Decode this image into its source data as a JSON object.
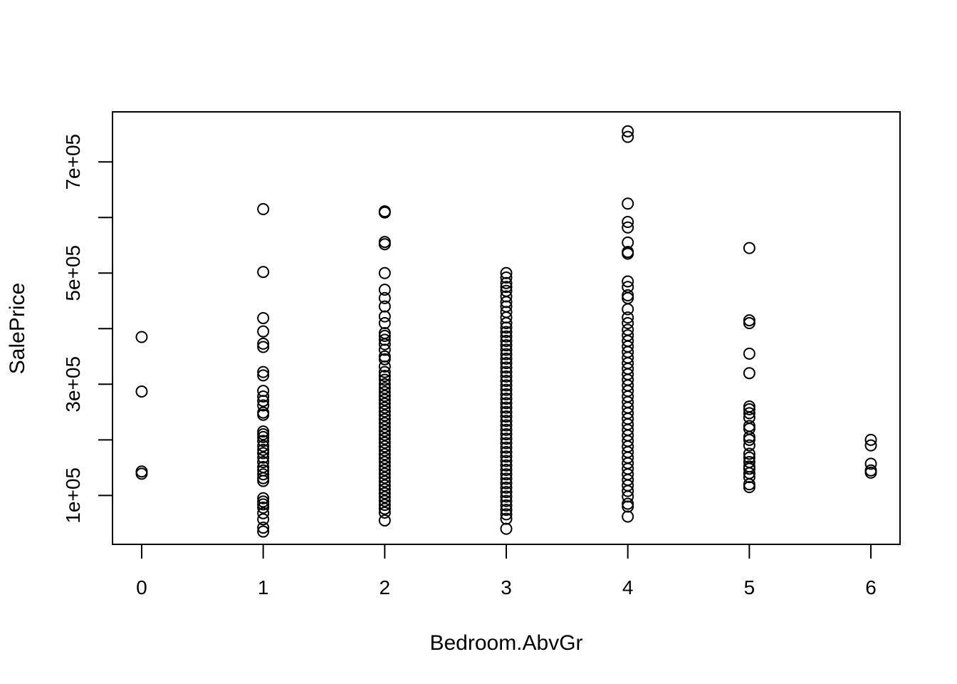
{
  "chart_data": {
    "type": "scatter",
    "title": "",
    "xlabel": "Bedroom.AbvGr",
    "ylabel": "SalePrice",
    "xlim": [
      -0.24,
      6.24
    ],
    "ylim": [
      12000,
      790000
    ],
    "x_ticks": [
      0,
      1,
      2,
      3,
      4,
      5,
      6
    ],
    "x_tick_labels": [
      "0",
      "1",
      "2",
      "3",
      "4",
      "5",
      "6"
    ],
    "y_ticks": [
      100000,
      200000,
      300000,
      400000,
      500000,
      600000,
      700000
    ],
    "y_tick_labels": [
      "1e+05",
      "",
      "3e+05",
      "",
      "5e+05",
      "",
      "7e+05"
    ],
    "grid": false,
    "legend": "none",
    "marker": "open-circle",
    "series": [
      {
        "points": [
          [
            0,
            385000
          ],
          [
            0,
            287000
          ],
          [
            0,
            143000
          ],
          [
            0,
            139000
          ],
          [
            1,
            615000
          ],
          [
            1,
            502000
          ],
          [
            1,
            419000
          ],
          [
            1,
            395000
          ],
          [
            1,
            373000
          ],
          [
            1,
            367000
          ],
          [
            1,
            322000
          ],
          [
            1,
            316000
          ],
          [
            1,
            288000
          ],
          [
            1,
            278000
          ],
          [
            1,
            270000
          ],
          [
            1,
            262000
          ],
          [
            1,
            249000
          ],
          [
            1,
            245000
          ],
          [
            1,
            215000
          ],
          [
            1,
            210000
          ],
          [
            1,
            205000
          ],
          [
            1,
            198000
          ],
          [
            1,
            189000
          ],
          [
            1,
            182000
          ],
          [
            1,
            176000
          ],
          [
            1,
            168000
          ],
          [
            1,
            160000
          ],
          [
            1,
            151000
          ],
          [
            1,
            145000
          ],
          [
            1,
            138000
          ],
          [
            1,
            131000
          ],
          [
            1,
            126000
          ],
          [
            1,
            95000
          ],
          [
            1,
            89000
          ],
          [
            1,
            84000
          ],
          [
            1,
            78000
          ],
          [
            1,
            68000
          ],
          [
            1,
            57000
          ],
          [
            1,
            42000
          ],
          [
            1,
            35000
          ],
          [
            2,
            611000
          ],
          [
            2,
            609000
          ],
          [
            2,
            556000
          ],
          [
            2,
            552000
          ],
          [
            2,
            500000
          ],
          [
            2,
            470000
          ],
          [
            2,
            455000
          ],
          [
            2,
            440000
          ],
          [
            2,
            422000
          ],
          [
            2,
            410000
          ],
          [
            2,
            392000
          ],
          [
            2,
            387000
          ],
          [
            2,
            380000
          ],
          [
            2,
            372000
          ],
          [
            2,
            362000
          ],
          [
            2,
            350000
          ],
          [
            2,
            345000
          ],
          [
            2,
            332000
          ],
          [
            2,
            322000
          ],
          [
            2,
            315000
          ],
          [
            2,
            308000
          ],
          [
            2,
            300000
          ],
          [
            2,
            293000
          ],
          [
            2,
            286000
          ],
          [
            2,
            279000
          ],
          [
            2,
            272000
          ],
          [
            2,
            265000
          ],
          [
            2,
            258000
          ],
          [
            2,
            251000
          ],
          [
            2,
            244000
          ],
          [
            2,
            237000
          ],
          [
            2,
            230000
          ],
          [
            2,
            223000
          ],
          [
            2,
            216000
          ],
          [
            2,
            209000
          ],
          [
            2,
            202000
          ],
          [
            2,
            195000
          ],
          [
            2,
            188000
          ],
          [
            2,
            181000
          ],
          [
            2,
            174000
          ],
          [
            2,
            167000
          ],
          [
            2,
            160000
          ],
          [
            2,
            153000
          ],
          [
            2,
            146000
          ],
          [
            2,
            139000
          ],
          [
            2,
            132000
          ],
          [
            2,
            125000
          ],
          [
            2,
            118000
          ],
          [
            2,
            111000
          ],
          [
            2,
            104000
          ],
          [
            2,
            97000
          ],
          [
            2,
            90000
          ],
          [
            2,
            83000
          ],
          [
            2,
            76000
          ],
          [
            2,
            69000
          ],
          [
            2,
            55000
          ],
          [
            3,
            500000
          ],
          [
            3,
            492000
          ],
          [
            3,
            482000
          ],
          [
            3,
            475000
          ],
          [
            3,
            468000
          ],
          [
            3,
            458000
          ],
          [
            3,
            448000
          ],
          [
            3,
            440000
          ],
          [
            3,
            430000
          ],
          [
            3,
            420000
          ],
          [
            3,
            410000
          ],
          [
            3,
            402000
          ],
          [
            3,
            394000
          ],
          [
            3,
            386000
          ],
          [
            3,
            378000
          ],
          [
            3,
            370000
          ],
          [
            3,
            362000
          ],
          [
            3,
            354000
          ],
          [
            3,
            346000
          ],
          [
            3,
            338000
          ],
          [
            3,
            330000
          ],
          [
            3,
            322000
          ],
          [
            3,
            314000
          ],
          [
            3,
            306000
          ],
          [
            3,
            298000
          ],
          [
            3,
            290000
          ],
          [
            3,
            282000
          ],
          [
            3,
            274000
          ],
          [
            3,
            266000
          ],
          [
            3,
            258000
          ],
          [
            3,
            250000
          ],
          [
            3,
            242000
          ],
          [
            3,
            234000
          ],
          [
            3,
            226000
          ],
          [
            3,
            218000
          ],
          [
            3,
            210000
          ],
          [
            3,
            202000
          ],
          [
            3,
            194000
          ],
          [
            3,
            186000
          ],
          [
            3,
            178000
          ],
          [
            3,
            170000
          ],
          [
            3,
            162000
          ],
          [
            3,
            154000
          ],
          [
            3,
            146000
          ],
          [
            3,
            138000
          ],
          [
            3,
            130000
          ],
          [
            3,
            122000
          ],
          [
            3,
            114000
          ],
          [
            3,
            106000
          ],
          [
            3,
            98000
          ],
          [
            3,
            90000
          ],
          [
            3,
            82000
          ],
          [
            3,
            74000
          ],
          [
            3,
            66000
          ],
          [
            3,
            58000
          ],
          [
            3,
            40000
          ],
          [
            4,
            755000
          ],
          [
            4,
            745000
          ],
          [
            4,
            625000
          ],
          [
            4,
            592000
          ],
          [
            4,
            582000
          ],
          [
            4,
            555000
          ],
          [
            4,
            538000
          ],
          [
            4,
            535000
          ],
          [
            4,
            485000
          ],
          [
            4,
            475000
          ],
          [
            4,
            460000
          ],
          [
            4,
            455000
          ],
          [
            4,
            435000
          ],
          [
            4,
            420000
          ],
          [
            4,
            410000
          ],
          [
            4,
            398000
          ],
          [
            4,
            388000
          ],
          [
            4,
            378000
          ],
          [
            4,
            368000
          ],
          [
            4,
            358000
          ],
          [
            4,
            348000
          ],
          [
            4,
            338000
          ],
          [
            4,
            328000
          ],
          [
            4,
            318000
          ],
          [
            4,
            308000
          ],
          [
            4,
            298000
          ],
          [
            4,
            288000
          ],
          [
            4,
            278000
          ],
          [
            4,
            268000
          ],
          [
            4,
            258000
          ],
          [
            4,
            248000
          ],
          [
            4,
            238000
          ],
          [
            4,
            228000
          ],
          [
            4,
            218000
          ],
          [
            4,
            208000
          ],
          [
            4,
            198000
          ],
          [
            4,
            188000
          ],
          [
            4,
            178000
          ],
          [
            4,
            168000
          ],
          [
            4,
            158000
          ],
          [
            4,
            148000
          ],
          [
            4,
            138000
          ],
          [
            4,
            128000
          ],
          [
            4,
            118000
          ],
          [
            4,
            108000
          ],
          [
            4,
            98000
          ],
          [
            4,
            85000
          ],
          [
            4,
            80000
          ],
          [
            4,
            62000
          ],
          [
            5,
            545000
          ],
          [
            5,
            415000
          ],
          [
            5,
            410000
          ],
          [
            5,
            355000
          ],
          [
            5,
            320000
          ],
          [
            5,
            260000
          ],
          [
            5,
            255000
          ],
          [
            5,
            248000
          ],
          [
            5,
            240000
          ],
          [
            5,
            225000
          ],
          [
            5,
            220000
          ],
          [
            5,
            205000
          ],
          [
            5,
            200000
          ],
          [
            5,
            190000
          ],
          [
            5,
            175000
          ],
          [
            5,
            168000
          ],
          [
            5,
            160000
          ],
          [
            5,
            152000
          ],
          [
            5,
            148000
          ],
          [
            5,
            140000
          ],
          [
            5,
            133000
          ],
          [
            5,
            120000
          ],
          [
            5,
            115000
          ],
          [
            6,
            200000
          ],
          [
            6,
            190000
          ],
          [
            6,
            157000
          ],
          [
            6,
            145000
          ],
          [
            6,
            141000
          ]
        ]
      }
    ]
  }
}
